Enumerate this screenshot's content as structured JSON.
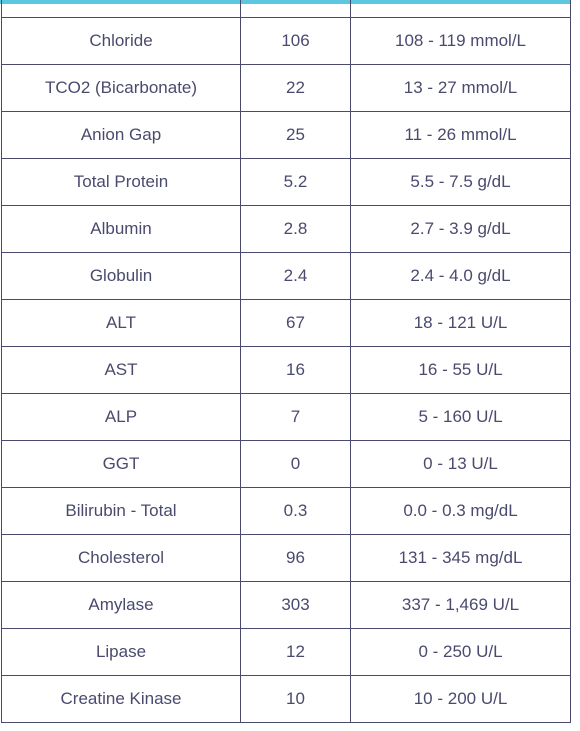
{
  "colors": {
    "accent_bar": "#5bc8e0",
    "text": "#4a4a6e",
    "border": "#4a4a6e"
  },
  "rows": [
    {
      "test": "Chloride",
      "value": "106",
      "range": "108 - 119 mmol/L"
    },
    {
      "test": "TCO2 (Bicarbonate)",
      "value": "22",
      "range": "13 - 27 mmol/L"
    },
    {
      "test": "Anion Gap",
      "value": "25",
      "range": "11 - 26 mmol/L"
    },
    {
      "test": "Total Protein",
      "value": "5.2",
      "range": "5.5 - 7.5 g/dL"
    },
    {
      "test": "Albumin",
      "value": "2.8",
      "range": "2.7 - 3.9 g/dL"
    },
    {
      "test": "Globulin",
      "value": "2.4",
      "range": "2.4 - 4.0 g/dL"
    },
    {
      "test": "ALT",
      "value": "67",
      "range": "18 - 121 U/L"
    },
    {
      "test": "AST",
      "value": "16",
      "range": "16 - 55 U/L"
    },
    {
      "test": "ALP",
      "value": "7",
      "range": "5 - 160 U/L"
    },
    {
      "test": "GGT",
      "value": "0",
      "range": "0 - 13 U/L"
    },
    {
      "test": "Bilirubin - Total",
      "value": "0.3",
      "range": "0.0 - 0.3 mg/dL"
    },
    {
      "test": "Cholesterol",
      "value": "96",
      "range": "131 - 345 mg/dL"
    },
    {
      "test": "Amylase",
      "value": "303",
      "range": "337 - 1,469 U/L"
    },
    {
      "test": "Lipase",
      "value": "12",
      "range": "0 - 250 U/L"
    },
    {
      "test": "Creatine Kinase",
      "value": "10",
      "range": "10 - 200 U/L"
    }
  ]
}
